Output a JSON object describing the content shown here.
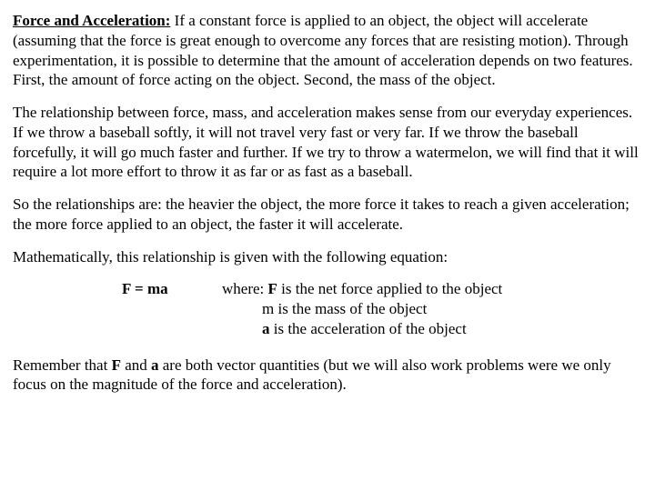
{
  "heading": "Force and Acceleration:",
  "p1": " If a constant force is applied to an object, the object will accelerate (assuming that the force is great enough to overcome any forces that are resisting motion).  Through experimentation, it is possible to determine that the amount of acceleration depends on two features.  First, the amount of force acting on the object.  Second, the mass of the object.",
  "p2": "The relationship between force, mass, and acceleration makes sense from our everyday experiences.  If we throw a baseball softly, it will not travel very fast or very far.  If we throw the baseball forcefully, it will go much faster and further.  If we try to throw a watermelon, we will find that it will require a lot more effort to throw it as far or as fast as a baseball.",
  "p3": "So the relationships are: the heavier the object, the more force it takes to reach a given acceleration; the more force applied to an object, the faster it will accelerate.",
  "p4": "Mathematically, this relationship is given with the following equation:",
  "equation": "F = ma",
  "where_label": "where: ",
  "where_F": " is the net force applied to the object",
  "where_m": "m is the mass of the object",
  "where_a": " is the acceleration of the object",
  "p5a": "Remember that ",
  "p5b": " and ",
  "p5c": " are both vector quantities (but we will also work problems were we only focus on the magnitude of the force and acceleration).",
  "sym_F": "F",
  "sym_a": "a"
}
